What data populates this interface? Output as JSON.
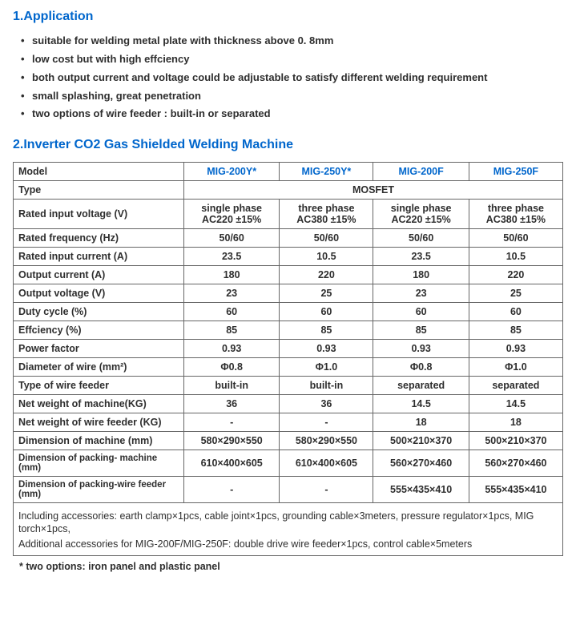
{
  "section1": {
    "title": "1.Application",
    "bullets": [
      "suitable for welding metal plate with thickness above 0. 8mm",
      "low cost but with high effciency",
      "both output current and voltage could be adjustable to satisfy different welding requirement",
      "small splashing, great  penetration",
      "two options of wire feeder : built-in or separated"
    ]
  },
  "section2": {
    "title": "2.Inverter CO2 Gas Shielded Welding Machine"
  },
  "table": {
    "columns": [
      "MIG-200Y*",
      "MIG-250Y*",
      "MIG-200F",
      "MIG-250F"
    ],
    "type_value": "MOSFET",
    "rows": [
      {
        "label": "Model",
        "header": true
      },
      {
        "label": "Type",
        "span": true,
        "value": "MOSFET"
      },
      {
        "label": "Rated input voltage (V)",
        "vals": [
          "single phase AC220 ±15%",
          "three phase AC380 ±15%",
          "single phase AC220 ±15%",
          "three phase AC380 ±15%"
        ]
      },
      {
        "label": "Rated frequency (Hz)",
        "vals": [
          "50/60",
          "50/60",
          "50/60",
          "50/60"
        ]
      },
      {
        "label": "Rated input current (A)",
        "vals": [
          "23.5",
          "10.5",
          "23.5",
          "10.5"
        ]
      },
      {
        "label": "Output current (A)",
        "vals": [
          "180",
          "220",
          "180",
          "220"
        ]
      },
      {
        "label": "Output voltage (V)",
        "vals": [
          "23",
          "25",
          "23",
          "25"
        ]
      },
      {
        "label": "Duty cycle (%)",
        "vals": [
          "60",
          "60",
          "60",
          "60"
        ]
      },
      {
        "label": "Effciency (%)",
        "vals": [
          "85",
          "85",
          "85",
          "85"
        ]
      },
      {
        "label": "Power factor",
        "vals": [
          "0.93",
          "0.93",
          "0.93",
          "0.93"
        ]
      },
      {
        "label": "Diameter of wire (mm²)",
        "vals": [
          "Φ0.8",
          "Φ1.0",
          "Φ0.8",
          "Φ1.0"
        ]
      },
      {
        "label": "Type of wire feeder",
        "vals": [
          "built-in",
          "built-in",
          "separated",
          "separated"
        ]
      },
      {
        "label": "Net weight of machine(KG)",
        "vals": [
          "36",
          "36",
          "14.5",
          "14.5"
        ]
      },
      {
        "label": "Net weight of wire feeder (KG)",
        "vals": [
          "-",
          "-",
          "18",
          "18"
        ]
      },
      {
        "label": "Dimension of machine (mm)",
        "vals": [
          "580×290×550",
          "580×290×550",
          "500×210×370",
          "500×210×370"
        ]
      },
      {
        "label": "Dimension of packing- machine (mm)",
        "vals": [
          "610×400×605",
          "610×400×605",
          "560×270×460",
          "560×270×460"
        ]
      },
      {
        "label": "Dimension of packing-wire feeder (mm)",
        "vals": [
          "-",
          "-",
          "555×435×410",
          "555×435×410"
        ]
      }
    ]
  },
  "notes": {
    "line1": "Including accessories: earth clamp×1pcs, cable joint×1pcs, grounding cable×3meters, pressure regulator×1pcs,  MIG torch×1pcs,",
    "line2": "Additional accessories for MIG-200F/MIG-250F: double drive wire feeder×1pcs, control cable×5meters"
  },
  "footnote": "* two options: iron panel and plastic panel"
}
